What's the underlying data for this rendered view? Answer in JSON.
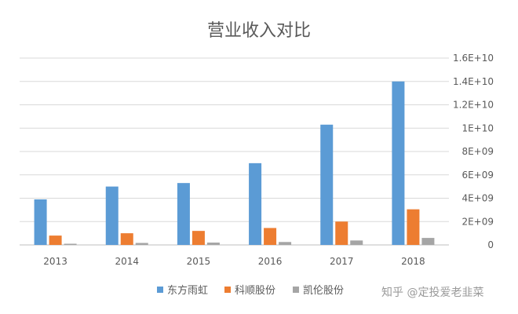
{
  "chart_data": {
    "type": "bar",
    "title": "营业收入对比",
    "categories": [
      "2013",
      "2014",
      "2015",
      "2016",
      "2017",
      "2018"
    ],
    "series": [
      {
        "name": "东方雨虹",
        "color": "#5B9BD5",
        "values": [
          3900000000,
          5000000000,
          5300000000,
          7000000000,
          10300000000,
          14000000000
        ]
      },
      {
        "name": "科顺股份",
        "color": "#ED7D31",
        "values": [
          800000000,
          1000000000,
          1200000000,
          1450000000,
          2000000000,
          3050000000
        ]
      },
      {
        "name": "凯伦股份",
        "color": "#A5A5A5",
        "values": [
          100000000,
          170000000,
          200000000,
          250000000,
          380000000,
          600000000
        ]
      }
    ],
    "ylim": [
      0,
      16000000000
    ],
    "yticks": [
      0,
      2000000000,
      4000000000,
      6000000000,
      8000000000,
      10000000000,
      12000000000,
      14000000000,
      16000000000
    ],
    "ytick_labels": [
      "0",
      "2E+09",
      "4E+09",
      "6E+09",
      "8E+09",
      "1E+10",
      "1.2E+10",
      "1.4E+10",
      "1.6E+10"
    ],
    "y_axis_side": "right",
    "grid": true,
    "legend_position": "bottom"
  },
  "watermark": {
    "text": "知乎 @定投爱老韭菜"
  }
}
